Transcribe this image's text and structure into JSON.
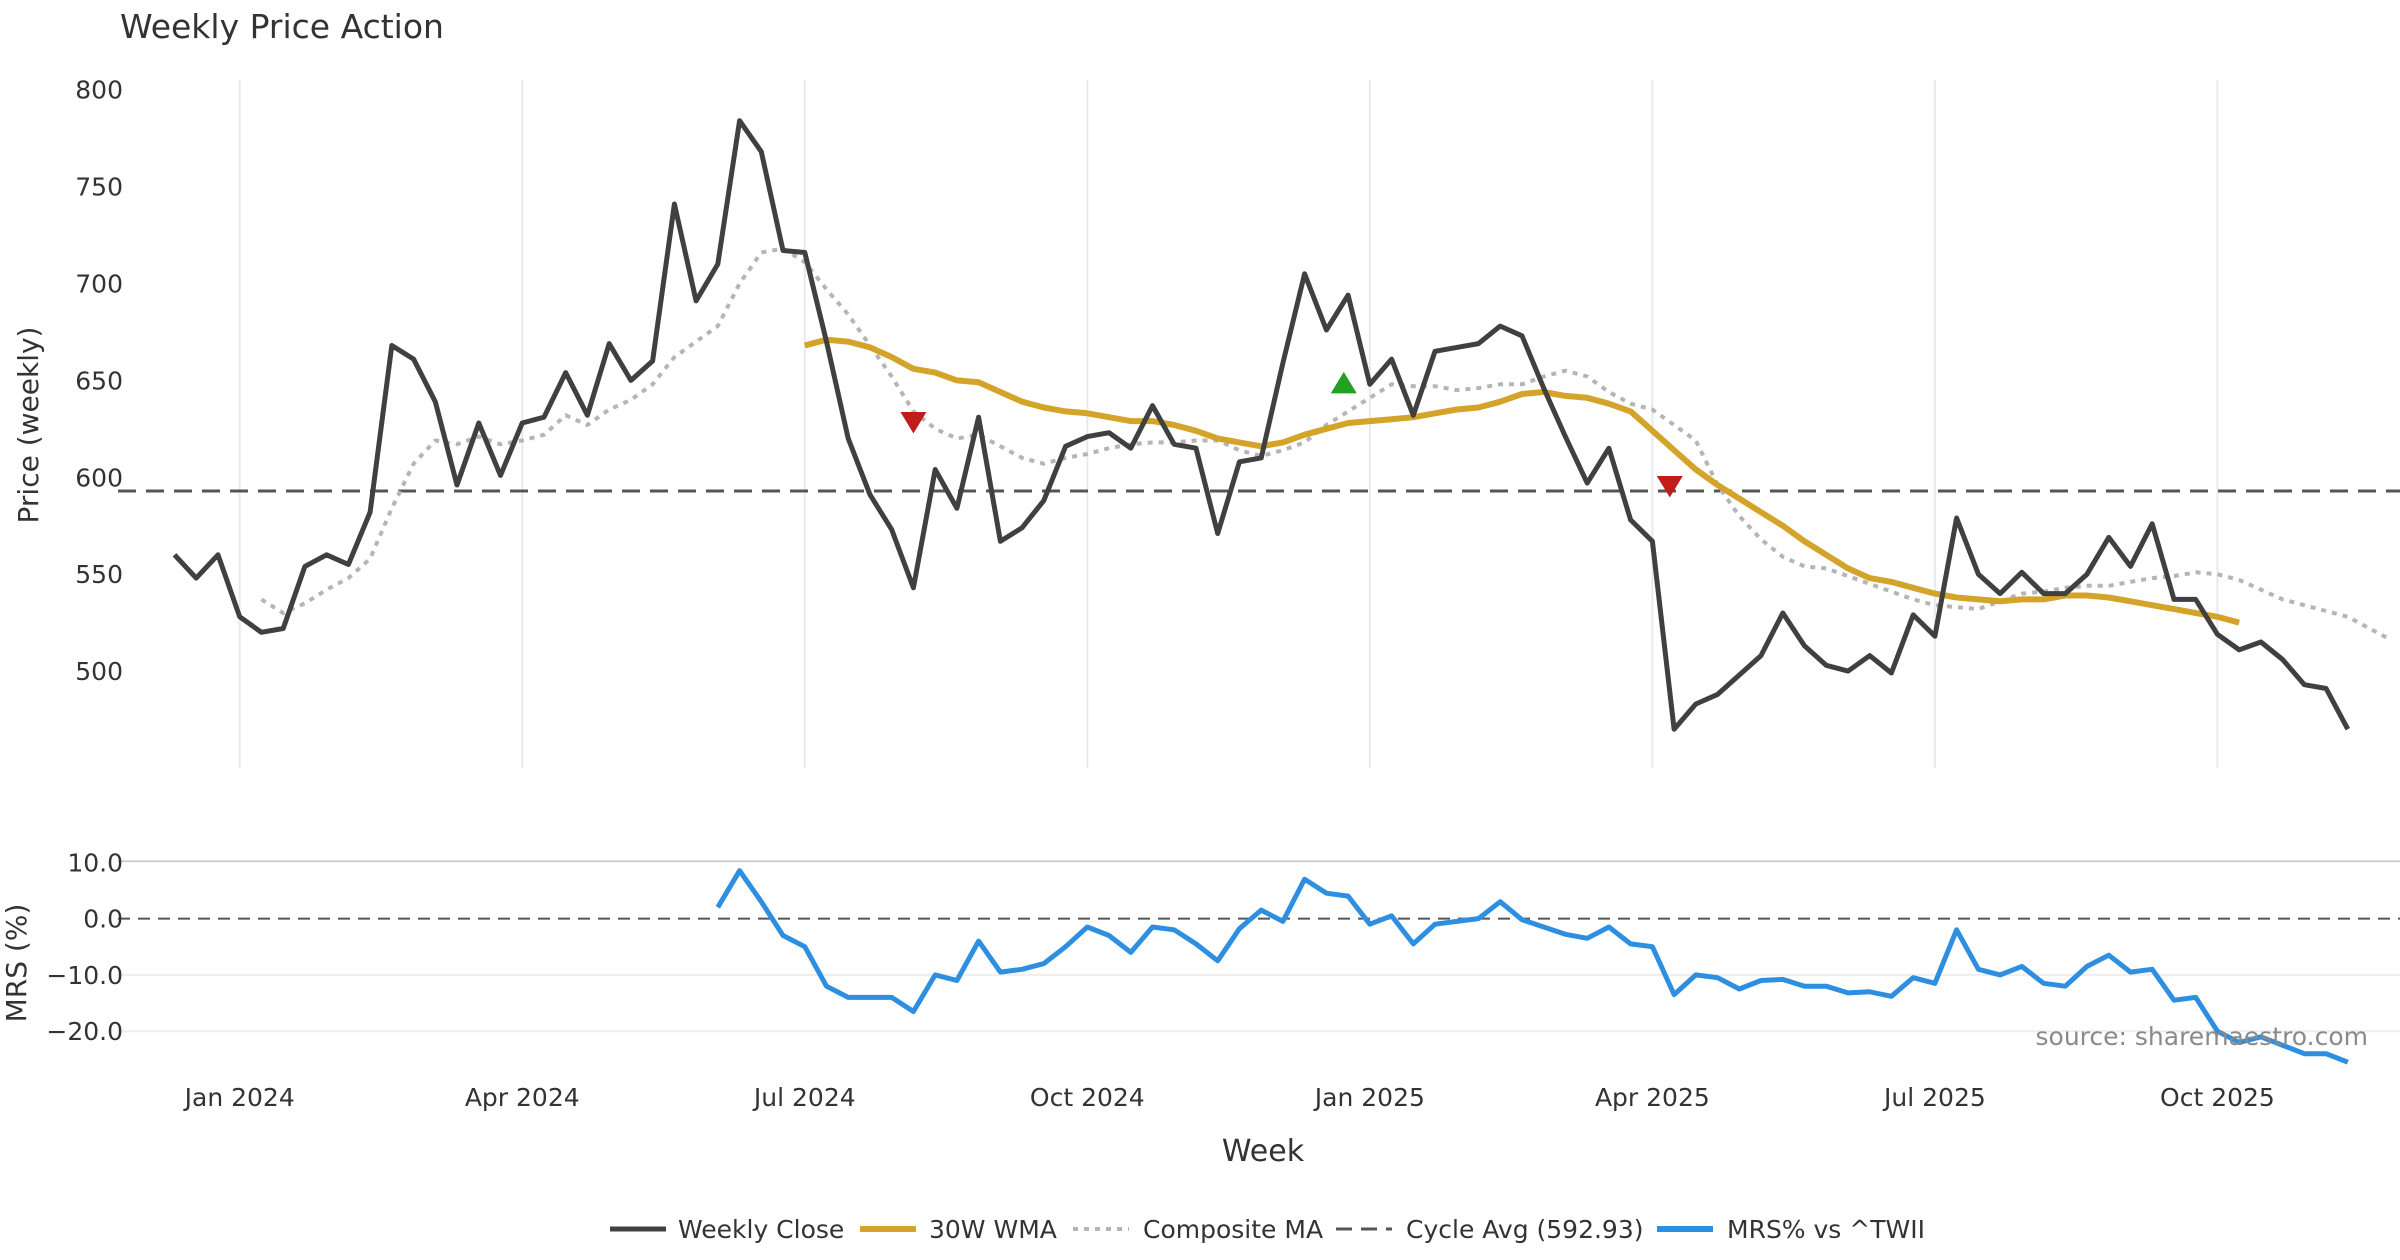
{
  "chart_data": {
    "type": "line",
    "title": "Weekly Price Action",
    "xlabel": "Week",
    "source_note": "source: sharemaestro.com",
    "x_ticks": [
      "Jan 2024",
      "Apr 2024",
      "Jul 2024",
      "Oct 2024",
      "Jan 2025",
      "Apr 2025",
      "Jul 2025",
      "Oct 2025"
    ],
    "x_tick_weeks": [
      3,
      16,
      29,
      42,
      55,
      68,
      81,
      94
    ],
    "x_range_weeks": [
      -2.6,
      102.4
    ],
    "price_panel": {
      "ylabel": "Price (weekly)",
      "ylim": [
        450,
        805
      ],
      "y_ticks": [
        800,
        750,
        700,
        650,
        600,
        550,
        500
      ],
      "grid": "vertical",
      "series": {
        "weekly_close": {
          "name": "Weekly Close",
          "color": "#404040",
          "start_week": 0,
          "values": [
            560,
            548,
            560,
            528,
            520,
            522,
            554,
            560,
            555,
            582,
            668,
            661,
            639,
            596,
            628,
            601,
            628,
            631,
            654,
            632,
            669,
            650,
            660,
            741,
            691,
            710,
            784,
            768,
            717,
            716,
            670,
            620,
            591,
            573,
            543,
            604,
            584,
            631,
            567,
            574,
            588,
            616,
            621,
            623,
            615,
            637,
            617,
            615,
            571,
            608,
            610,
            659,
            705,
            676,
            694,
            648,
            661,
            632,
            665,
            667,
            669,
            678,
            673,
            646,
            621,
            597,
            615,
            578,
            567,
            470,
            483,
            488,
            498,
            508,
            530,
            513,
            503,
            500,
            508,
            499,
            529,
            518,
            579,
            550,
            540,
            551,
            540,
            540,
            550,
            569,
            554,
            576,
            537,
            537,
            519,
            511,
            515,
            506,
            493,
            491,
            470
          ]
        },
        "wma_30": {
          "name": "30W WMA",
          "color": "#D4A32A",
          "start_week": 29,
          "values": [
            668,
            671,
            670,
            667,
            662,
            656,
            654,
            650,
            649,
            644,
            639,
            636,
            634,
            633,
            631,
            629,
            629,
            627,
            624,
            620,
            618,
            616,
            618,
            622,
            625,
            628,
            629,
            630,
            631,
            633,
            635,
            636,
            639,
            643,
            644,
            642,
            641,
            638,
            634,
            624,
            614,
            604,
            596,
            589,
            582,
            575,
            567,
            560,
            553,
            548,
            546,
            543,
            540,
            538,
            537,
            536,
            537,
            537,
            539,
            539,
            538,
            536,
            534,
            532,
            530,
            528,
            525
          ]
        },
        "composite_ma": {
          "name": "Composite MA",
          "color": "#B5B5B5",
          "start_week": 4,
          "values": [
            537,
            530,
            535,
            542,
            548,
            558,
            584,
            607,
            619,
            617,
            621,
            617,
            619,
            622,
            632,
            627,
            635,
            640,
            648,
            662,
            670,
            678,
            700,
            716,
            718,
            711,
            697,
            684,
            668,
            652,
            634,
            625,
            620,
            622,
            616,
            610,
            607,
            610,
            612,
            615,
            617,
            618,
            618,
            619,
            619,
            614,
            611,
            614,
            618,
            627,
            634,
            641,
            648,
            647,
            647,
            645,
            646,
            648,
            648,
            652,
            655,
            652,
            644,
            638,
            635,
            627,
            619,
            596,
            580,
            568,
            559,
            554,
            553,
            549,
            545,
            541,
            537,
            534,
            533,
            532,
            536,
            540,
            541,
            543,
            544,
            544,
            546,
            548,
            549,
            551,
            550,
            547,
            542,
            537,
            534,
            531,
            528,
            522,
            516
          ]
        },
        "cycle_avg": {
          "name": "Cycle Avg (592.93)",
          "color": "#555555",
          "value": 592.93
        }
      },
      "markers": [
        {
          "type": "sell",
          "week": 34,
          "value": 630,
          "color": "#C01C1C"
        },
        {
          "type": "buy",
          "week": 53.8,
          "value": 647,
          "color": "#22A022"
        },
        {
          "type": "sell",
          "week": 68.8,
          "value": 597,
          "color": "#C01C1C"
        }
      ]
    },
    "mrs_panel": {
      "ylabel": "MRS (%)",
      "ylim": [
        -26,
        12
      ],
      "y_ticks": [
        "10.0",
        "0.0",
        "−10.0",
        "−20.0"
      ],
      "y_tick_values": [
        10,
        0,
        -10,
        -20
      ],
      "series": {
        "name": "MRS% vs ^TWII",
        "color": "#2E8FE0",
        "start_week": 25,
        "values": [
          2,
          8.5,
          3,
          -3,
          -5,
          -12,
          -14,
          -14,
          -14,
          -16.5,
          -10,
          -11,
          -4,
          -9.5,
          -9,
          -8,
          -5,
          -1.5,
          -3,
          -6,
          -1.5,
          -2,
          -4.5,
          -7.5,
          -1.8,
          1.5,
          -0.5,
          7,
          4.5,
          4,
          -1,
          0.5,
          -4.5,
          -1,
          -0.5,
          0,
          3,
          -0.2,
          -1.5,
          -2.8,
          -3.5,
          -1.5,
          -4.5,
          -5,
          -13.5,
          -10,
          -10.5,
          -12.5,
          -11,
          -10.8,
          -12,
          -12,
          -13.2,
          -13,
          -13.8,
          -10.5,
          -11.5,
          -2,
          -9,
          -10,
          -8.5,
          -11.5,
          -12,
          -8.5,
          -6.5,
          -9.5,
          -9,
          -14.5,
          -14,
          -20,
          -22,
          -21,
          -22.5,
          -24,
          -24,
          -25.5
        ]
      },
      "zero_line": 0
    },
    "legend": [
      "Weekly Close",
      "30W WMA",
      "Composite MA",
      "Cycle Avg (592.93)",
      "MRS% vs ^TWII"
    ],
    "legend_placement": "bottom-center"
  }
}
